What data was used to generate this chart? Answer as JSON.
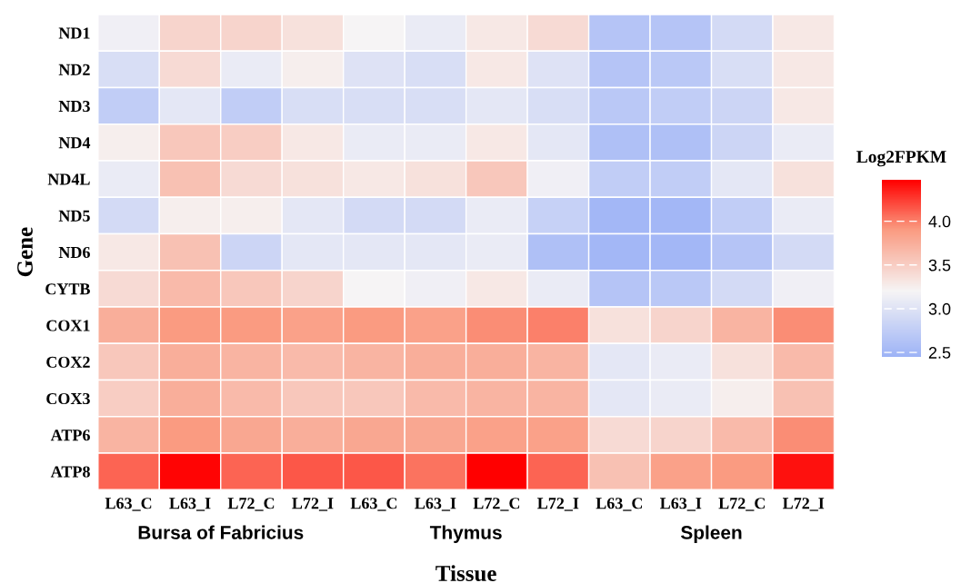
{
  "chart_data": {
    "type": "heatmap",
    "xlabel": "Tissue",
    "ylabel": "Gene",
    "clabel": "Log2FPKM",
    "categories": [
      "L63_C",
      "L63_I",
      "L72_C",
      "L72_I",
      "L63_C",
      "L63_I",
      "L72_C",
      "L72_I",
      "L63_C",
      "L63_I",
      "L72_C",
      "L72_I"
    ],
    "y_categories": [
      "ND1",
      "ND2",
      "ND3",
      "ND4",
      "ND4L",
      "ND5",
      "ND6",
      "CYTB",
      "COX1",
      "COX2",
      "COX3",
      "ATP6",
      "ATP8"
    ],
    "cells": [
      [
        3.15,
        3.45,
        3.45,
        3.35,
        3.2,
        3.1,
        3.3,
        3.4,
        2.65,
        2.65,
        2.9,
        3.3
      ],
      [
        2.95,
        3.4,
        3.1,
        3.25,
        3.0,
        2.95,
        3.3,
        3.0,
        2.65,
        2.7,
        2.95,
        3.3
      ],
      [
        2.75,
        3.05,
        2.75,
        2.95,
        2.95,
        2.95,
        3.05,
        2.95,
        2.7,
        2.75,
        2.85,
        3.3
      ],
      [
        3.25,
        3.55,
        3.5,
        3.3,
        3.1,
        3.1,
        3.3,
        3.05,
        2.6,
        2.6,
        2.85,
        3.1
      ],
      [
        3.1,
        3.6,
        3.4,
        3.35,
        3.3,
        3.35,
        3.55,
        3.15,
        2.75,
        2.75,
        3.05,
        3.35
      ],
      [
        2.9,
        3.25,
        3.25,
        3.05,
        2.9,
        2.9,
        3.1,
        2.8,
        2.5,
        2.5,
        2.75,
        3.1
      ],
      [
        3.3,
        3.6,
        2.85,
        3.05,
        3.05,
        3.05,
        3.1,
        2.6,
        2.5,
        2.5,
        2.65,
        2.9
      ],
      [
        3.4,
        3.65,
        3.55,
        3.45,
        3.2,
        3.15,
        3.3,
        3.1,
        2.65,
        2.7,
        2.9,
        3.15
      ],
      [
        3.75,
        3.9,
        3.9,
        3.85,
        3.9,
        3.85,
        3.95,
        4.0,
        3.35,
        3.45,
        3.7,
        3.95
      ],
      [
        3.55,
        3.75,
        3.7,
        3.65,
        3.7,
        3.75,
        3.75,
        3.7,
        3.05,
        3.1,
        3.35,
        3.65
      ],
      [
        3.5,
        3.75,
        3.65,
        3.55,
        3.55,
        3.65,
        3.7,
        3.7,
        3.05,
        3.1,
        3.25,
        3.6
      ],
      [
        3.7,
        3.9,
        3.8,
        3.75,
        3.8,
        3.8,
        3.85,
        3.85,
        3.4,
        3.45,
        3.65,
        3.95
      ],
      [
        4.1,
        4.45,
        4.1,
        4.15,
        4.15,
        4.05,
        4.47,
        4.1,
        3.6,
        3.85,
        3.9,
        4.4
      ]
    ],
    "clim": [
      2.45,
      4.47
    ],
    "cticks": [
      2.5,
      {
        "value": 3.0,
        "label": "3.0"
      },
      3.5,
      {
        "value": 4.0,
        "label": "4.0"
      }
    ],
    "annotations": [
      "Bursa of Fabricius",
      "Thymus",
      "Spleen"
    ]
  }
}
